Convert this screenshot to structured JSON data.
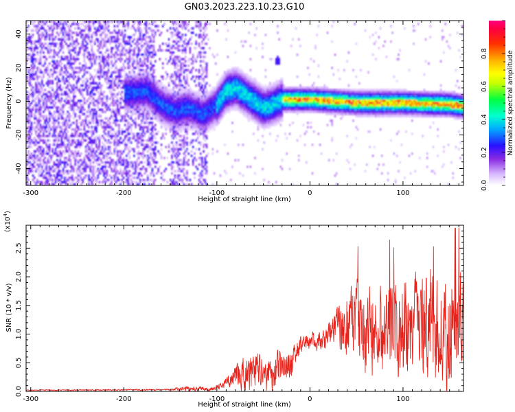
{
  "title": "GN03.2023.223.10.23.G10",
  "chart_data": [
    {
      "type": "heatmap",
      "name": "spectrogram",
      "xlabel": "Height of straight line (km)",
      "ylabel": "Frequency (Hz)",
      "xlim": [
        -305,
        165
      ],
      "ylim": [
        -50,
        48
      ],
      "xticks": [
        -300,
        -200,
        -100,
        0,
        100
      ],
      "yticks": [
        40,
        20,
        0,
        -20,
        -40
      ],
      "colorbar": {
        "label": "Normalized spectral amplitude",
        "range": [
          0,
          1
        ],
        "ticks": [
          0.0,
          0.2,
          0.4,
          0.6,
          0.8
        ],
        "tick_labels": [
          "0.0",
          "0.2",
          "0.4",
          "0.6",
          "0.8"
        ],
        "colors": [
          "#ffffff",
          "#b070ff",
          "#3300ff",
          "#00c0ff",
          "#00ff60",
          "#ffff00",
          "#ff8000",
          "#ff0000",
          "#ff0080"
        ]
      },
      "signal_track": [
        {
          "x": -190,
          "freq": 5
        },
        {
          "x": -175,
          "freq": 6
        },
        {
          "x": -160,
          "freq": -2
        },
        {
          "x": -145,
          "freq": -6
        },
        {
          "x": -130,
          "freq": -4
        },
        {
          "x": -115,
          "freq": -8
        },
        {
          "x": -100,
          "freq": -2
        },
        {
          "x": -90,
          "freq": 6
        },
        {
          "x": -80,
          "freq": 8
        },
        {
          "x": -70,
          "freq": 4
        },
        {
          "x": -60,
          "freq": 0
        },
        {
          "x": -50,
          "freq": -4
        },
        {
          "x": -40,
          "freq": -2
        },
        {
          "x": -30,
          "freq": 1
        },
        {
          "x": 0,
          "freq": 1
        },
        {
          "x": 50,
          "freq": -1
        },
        {
          "x": 100,
          "freq": -1
        },
        {
          "x": 150,
          "freq": -2
        },
        {
          "x": 165,
          "freq": -3
        }
      ],
      "isolated_blob": {
        "x": -35,
        "freq": 24
      },
      "noise_region": [
        -305,
        -110
      ]
    },
    {
      "type": "line",
      "name": "snr",
      "xlabel": "Height of straight line (km)",
      "ylabel": "SNR (10 * v/v)",
      "scale_label": "(x10",
      "scale_exponent": "4",
      "xlim": [
        -305,
        165
      ],
      "ylim": [
        0,
        2.9
      ],
      "xticks": [
        -300,
        -200,
        -100,
        0,
        100
      ],
      "yticks": [
        0.0,
        0.5,
        1.0,
        1.5,
        2.0,
        2.5
      ],
      "ytick_labels": [
        "0.0",
        "0.5",
        "1.0",
        "1.5",
        "2.0",
        "2.5"
      ],
      "series_color": "#e8231b",
      "envelope": [
        {
          "x": -305,
          "base": 0.02,
          "amp": 0.01
        },
        {
          "x": -150,
          "base": 0.03,
          "amp": 0.02
        },
        {
          "x": -130,
          "base": 0.05,
          "amp": 0.07
        },
        {
          "x": -105,
          "base": 0.04,
          "amp": 0.04
        },
        {
          "x": -90,
          "base": 0.15,
          "amp": 0.12
        },
        {
          "x": -70,
          "base": 0.35,
          "amp": 0.45
        },
        {
          "x": -40,
          "base": 0.35,
          "amp": 0.5
        },
        {
          "x": -20,
          "base": 0.45,
          "amp": 0.4
        },
        {
          "x": -10,
          "base": 0.85,
          "amp": 0.2
        },
        {
          "x": 15,
          "base": 0.9,
          "amp": 0.25
        },
        {
          "x": 30,
          "base": 1.2,
          "amp": 0.5
        },
        {
          "x": 50,
          "base": 1.1,
          "amp": 1.1
        },
        {
          "x": 100,
          "base": 1.1,
          "amp": 1.2
        },
        {
          "x": 150,
          "base": 1.1,
          "amp": 1.3
        },
        {
          "x": 165,
          "base": 1.1,
          "amp": 1.2
        }
      ]
    }
  ]
}
